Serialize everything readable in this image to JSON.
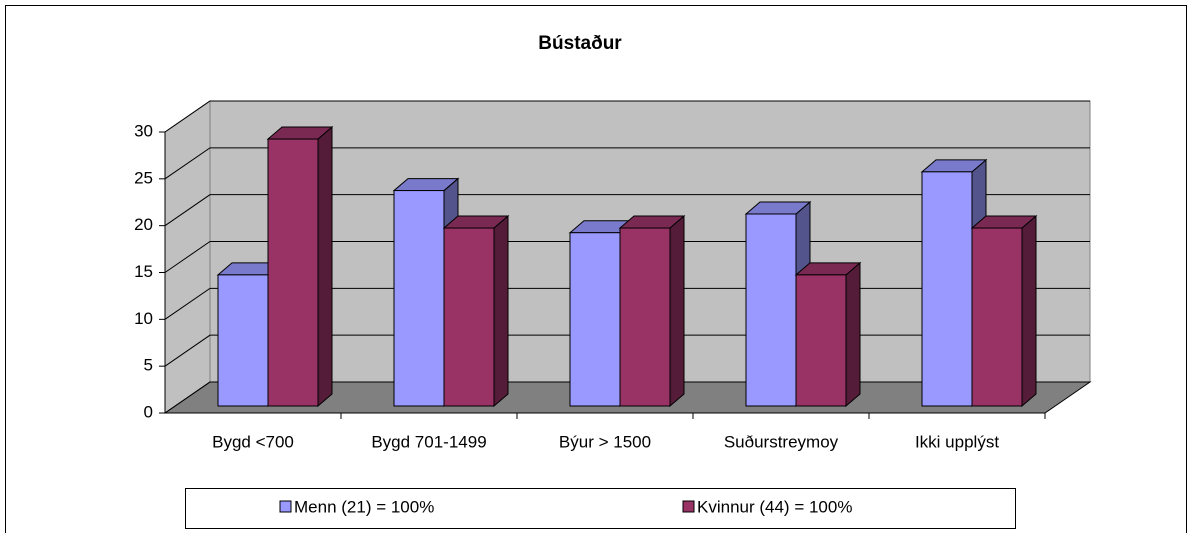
{
  "chart_data": {
    "type": "bar",
    "title": "Bústaður",
    "categories": [
      "Bygd <700",
      "Bygd 701-1499",
      "Býur > 1500",
      "Suðurstreymoy",
      "Ikki upplýst"
    ],
    "series": [
      {
        "name": "Menn (21) = 100%",
        "color": "#9999ff",
        "values": [
          14,
          23,
          18.5,
          20.5,
          25
        ]
      },
      {
        "name": "Kvinnur (44) = 100%",
        "color": "#993366",
        "values": [
          28.5,
          19,
          19,
          14,
          19
        ]
      }
    ],
    "ylim": [
      0,
      30
    ],
    "yticks": [
      0,
      5,
      10,
      15,
      20,
      25,
      30
    ],
    "grid": true,
    "legend": "bottom",
    "three_d": true
  }
}
